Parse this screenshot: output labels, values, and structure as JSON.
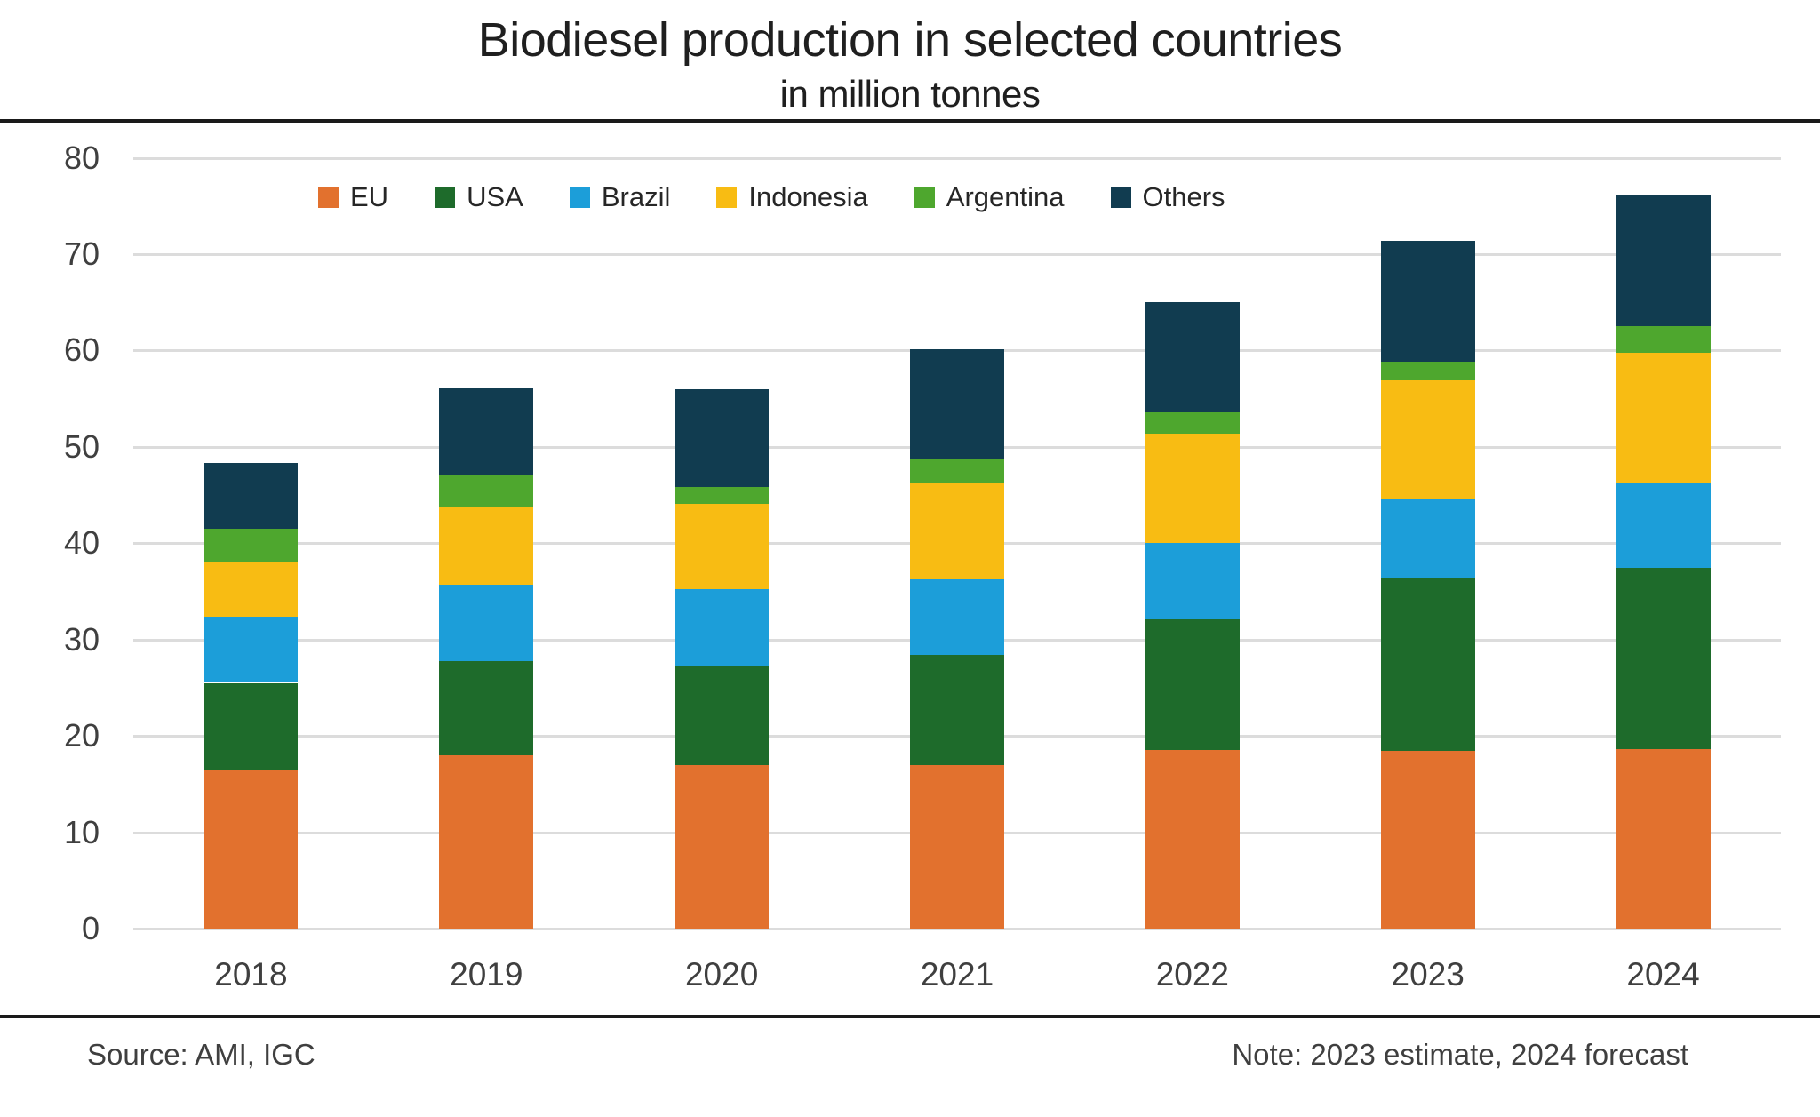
{
  "header": {
    "title": "Biodiesel production in selected countries",
    "subtitle": "in million tonnes"
  },
  "footer": {
    "source": "Source: AMI, IGC",
    "note": "Note: 2023 estimate, 2024 forecast"
  },
  "colors": {
    "grid": "#dcdcdc",
    "rule": "#1a1a1a",
    "text": "#3f3f3f"
  },
  "chart_data": {
    "type": "bar",
    "stacked": true,
    "title": "Biodiesel production in selected countries",
    "subtitle": "in million tonnes",
    "xlabel": "",
    "ylabel": "",
    "ylim": [
      0,
      80
    ],
    "ytick_step": 10,
    "grid": true,
    "legend_position": "top",
    "categories": [
      "2018",
      "2019",
      "2020",
      "2021",
      "2022",
      "2023",
      "2024"
    ],
    "series": [
      {
        "name": "EU",
        "color": "#e2712e",
        "values": [
          16.5,
          18.0,
          17.0,
          17.0,
          18.5,
          18.4,
          18.6
        ]
      },
      {
        "name": "USA",
        "color": "#1e6b2b",
        "values": [
          9.0,
          9.8,
          10.3,
          11.4,
          13.6,
          18.0,
          18.8
        ]
      },
      {
        "name": "Brazil",
        "color": "#1c9ed9",
        "values": [
          6.9,
          7.9,
          7.9,
          7.8,
          7.9,
          8.1,
          8.9
        ]
      },
      {
        "name": "Indonesia",
        "color": "#f8bc13",
        "values": [
          5.6,
          8.0,
          8.9,
          10.1,
          11.4,
          12.4,
          13.5
        ]
      },
      {
        "name": "Argentina",
        "color": "#4ea72e",
        "values": [
          3.5,
          3.3,
          1.7,
          2.4,
          2.2,
          1.9,
          2.7
        ]
      },
      {
        "name": "Others",
        "color": "#113c50",
        "values": [
          6.8,
          9.1,
          10.2,
          11.4,
          11.4,
          12.6,
          13.7
        ]
      }
    ],
    "totals": [
      48.3,
      56.1,
      56.0,
      60.1,
      65.0,
      71.4,
      76.2
    ]
  }
}
